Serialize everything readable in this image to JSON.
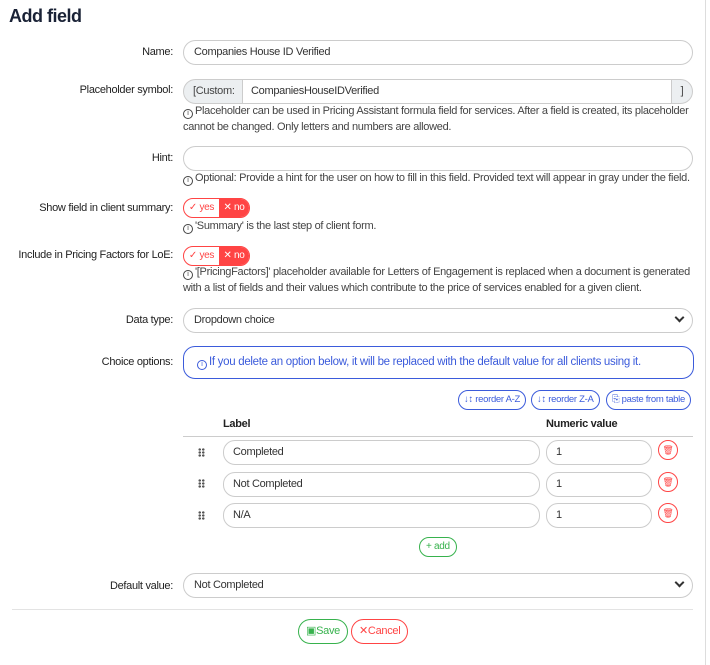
{
  "title": "Add field",
  "name": {
    "label": "Name:",
    "value": "Companies House ID Verified"
  },
  "placeholder": {
    "label": "Placeholder symbol:",
    "prefix": "[Custom:",
    "value": "CompaniesHouseIDVerified",
    "suffix": "]",
    "help": "Placeholder can be used in Pricing Assistant formula field for services. After a field is created, its placeholder cannot be changed. Only letters and numbers are allowed."
  },
  "hint": {
    "label": "Hint:",
    "value": "",
    "help": "Optional: Provide a hint for the user on how to fill in this field. Provided text will appear in gray under the field."
  },
  "summary": {
    "label": "Show field in client summary:",
    "yes": "yes",
    "no": "no",
    "selected": "no",
    "help": "'Summary' is the last step of client form."
  },
  "pricing": {
    "label": "Include in Pricing Factors for LoE:",
    "yes": "yes",
    "no": "no",
    "selected": "no",
    "help": "'[PricingFactors]' placeholder available for Letters of Engagement is replaced when a document is generated with a list of fields and their values which contribute to the price of services enabled for a given client."
  },
  "datatype": {
    "label": "Data type:",
    "value": "Dropdown choice"
  },
  "choices": {
    "label": "Choice options:",
    "info": "If you delete an option below, it will be replaced with the default value for all clients using it.",
    "reorder_az": "reorder A-Z",
    "reorder_za": "reorder Z-A",
    "paste": "paste from table",
    "col_label": "Label",
    "col_value": "Numeric value",
    "rows": [
      {
        "label": "Completed",
        "value": "1"
      },
      {
        "label": "Not Completed",
        "value": "1"
      },
      {
        "label": "N/A",
        "value": "1"
      }
    ],
    "add": "add"
  },
  "default": {
    "label": "Default value:",
    "value": "Not Completed"
  },
  "save": "Save",
  "cancel": "Cancel",
  "colors": {
    "blue": "#3b5bdb",
    "red": "#ff4444",
    "green": "#37b24d"
  }
}
